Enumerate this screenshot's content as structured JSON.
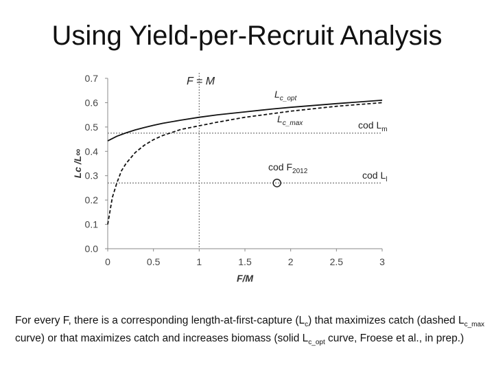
{
  "title": "Using Yield-per-Recruit Analysis",
  "chart_data": {
    "type": "line",
    "xlabel": "F/M",
    "ylabel": "Lc /L∞",
    "xlim": [
      0,
      3
    ],
    "ylim": [
      0,
      0.7
    ],
    "xticks": [
      "0",
      "0.5",
      "1",
      "1.5",
      "2",
      "2.5",
      "3"
    ],
    "yticks": [
      "0.0",
      "0.1",
      "0.2",
      "0.3",
      "0.4",
      "0.5",
      "0.6",
      "0.7"
    ],
    "grid": false,
    "series": [
      {
        "name": "Lc_opt",
        "style": "solid",
        "x": [
          0,
          0.1,
          0.2,
          0.3,
          0.4,
          0.5,
          0.6,
          0.8,
          1.0,
          1.2,
          1.5,
          1.8,
          2.0,
          2.5,
          3.0
        ],
        "y": [
          0.443,
          0.462,
          0.476,
          0.488,
          0.498,
          0.507,
          0.515,
          0.528,
          0.54,
          0.55,
          0.562,
          0.574,
          0.581,
          0.596,
          0.61
        ]
      },
      {
        "name": "Lc_max",
        "style": "dashed",
        "x": [
          0,
          0.05,
          0.1,
          0.15,
          0.2,
          0.3,
          0.4,
          0.5,
          0.6,
          0.8,
          1.0,
          1.2,
          1.5,
          1.8,
          2.0,
          2.5,
          3.0
        ],
        "y": [
          0.1,
          0.21,
          0.27,
          0.32,
          0.35,
          0.395,
          0.425,
          0.448,
          0.465,
          0.49,
          0.505,
          0.52,
          0.54,
          0.555,
          0.565,
          0.585,
          0.6
        ]
      }
    ],
    "reference_lines": [
      {
        "orientation": "vertical",
        "x": 1,
        "style": "dotted"
      },
      {
        "orientation": "horizontal",
        "y": 0.475,
        "style": "dotted"
      },
      {
        "orientation": "horizontal",
        "y": 0.27,
        "style": "dotted"
      }
    ],
    "point": {
      "x": 1.85,
      "y": 0.27,
      "marker": "open-circle"
    },
    "annotations": {
      "fm": "F = M",
      "lcopt_main": "L",
      "lcopt_sub": "c_opt",
      "lcmax_main": "L",
      "lcmax_sub": "c_max",
      "codlm_main": "cod L",
      "codlm_sub": "m",
      "codf_main": "cod F",
      "codf_sub": "2012",
      "codl1_main": "cod L",
      "codl1_sub": "l"
    }
  },
  "caption": {
    "part1": "For every F, there is a corresponding length-at-first-capture (L",
    "sub1": "c",
    "part2": ") that maximizes catch (dashed L",
    "sub2": "c_max",
    "part3": " curve) or that maximizes catch and increases biomass (solid L",
    "sub3": "c_opt",
    "part4": " curve, Froese et al., in prep.)"
  }
}
